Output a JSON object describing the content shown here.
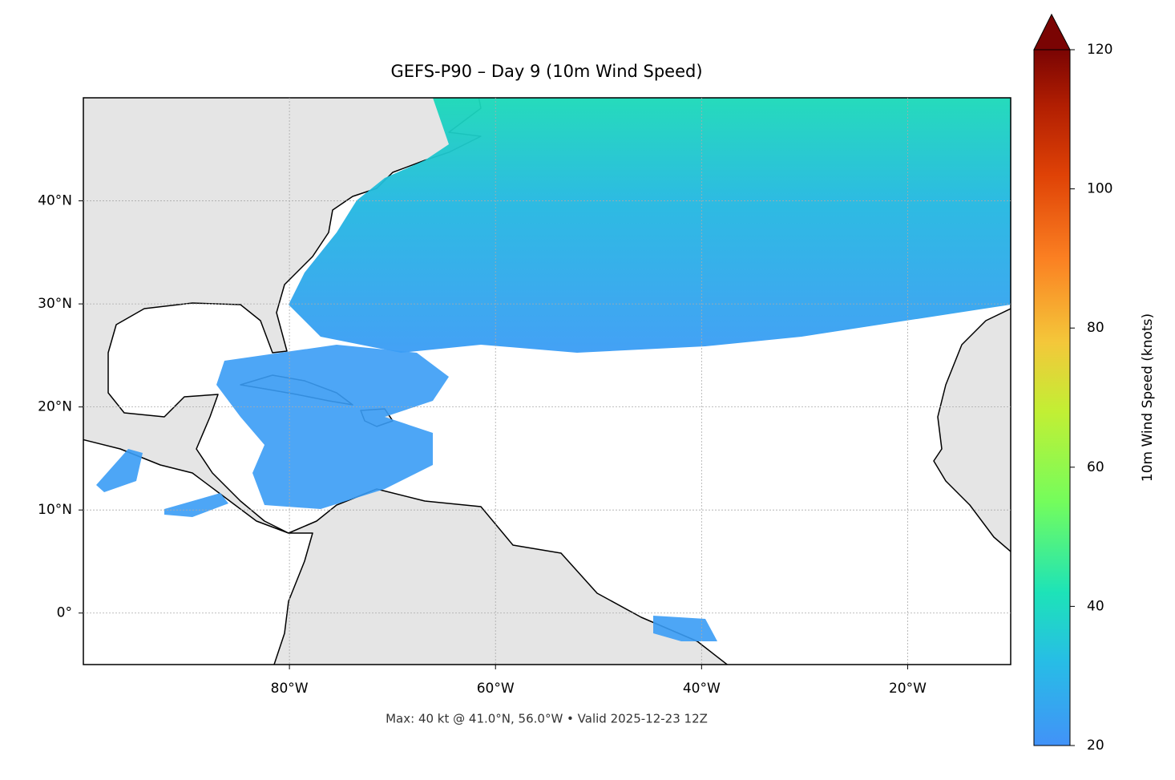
{
  "chart_data": {
    "type": "map",
    "title": "GEFS-P90 – Day 9 (10m Wind Speed)",
    "subtitle": "Max: 40 kt @ 41.0°N, 56.0°W • Valid 2025-12-23 12Z",
    "colorbar_label": "10m Wind Speed (knots)",
    "xlim": [
      -100,
      -10
    ],
    "ylim": [
      -5,
      50
    ],
    "xticks": [
      {
        "value": -80,
        "label": "80°W"
      },
      {
        "value": -60,
        "label": "60°W"
      },
      {
        "value": -40,
        "label": "40°W"
      },
      {
        "value": -20,
        "label": "20°W"
      }
    ],
    "yticks": [
      {
        "value": 0,
        "label": "0°"
      },
      {
        "value": 10,
        "label": "10°N"
      },
      {
        "value": 20,
        "label": "20°N"
      },
      {
        "value": 30,
        "label": "30°N"
      },
      {
        "value": 40,
        "label": "40°N"
      }
    ],
    "clim": [
      20,
      120
    ],
    "cticks": [
      20,
      40,
      60,
      80,
      100,
      120
    ],
    "grid": true
  }
}
